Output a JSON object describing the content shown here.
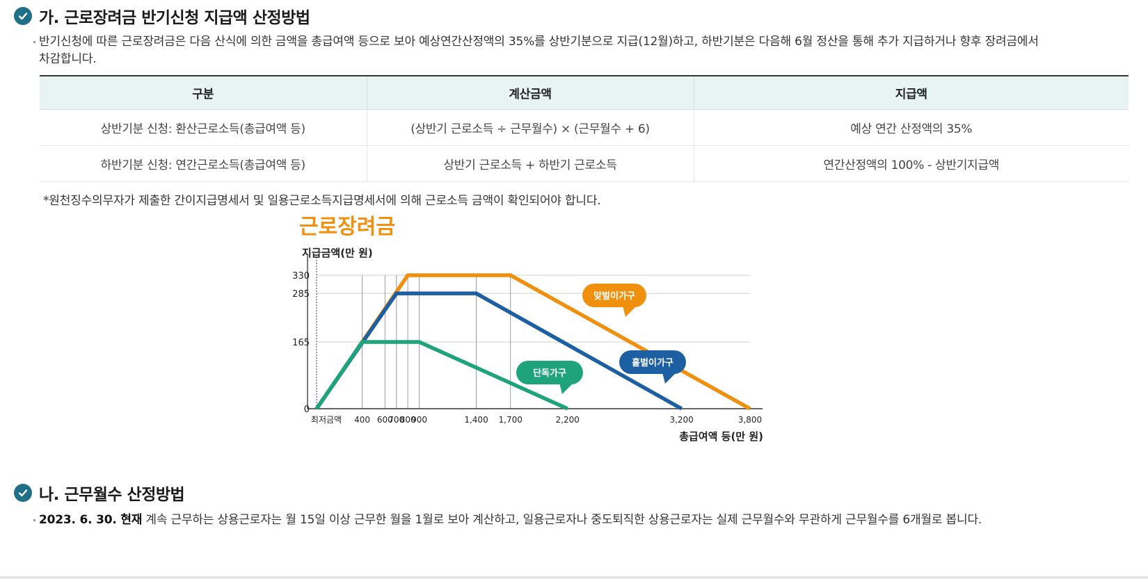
{
  "section_a": {
    "heading": "가. 근로장려금 반기신청 지급액 산정방법",
    "description": "반기신청에 따른 근로장려금은 다음 산식에 의한 금액을 총급여액 등으로 보아 예상연간산정액의 35%를 상반기분으로 지급(12월)하고, 하반기분은 다음해 6월 정산을 통해 추가 지급하거나 향후 장려금에서 차감합니다."
  },
  "table": {
    "headers": [
      "구분",
      "계산금액",
      "지급액"
    ],
    "rows": [
      [
        "상반기분 신청: 환산근로소득(총급여액 등)",
        "(상반기 근로소득 ÷ 근무월수) × (근무월수 + 6)",
        "예상 연간 산정액의 35%"
      ],
      [
        "하반기분 신청: 연간근로소득(총급여액 등)",
        "상반기 근로소득 + 하반기 근로소득",
        "연간산정액의 100% - 상반기지급액"
      ]
    ]
  },
  "footnote": "*원천징수의무자가 제출한 간이지급명세서 및 일용근로소득지급명세서에 의해 근로소득 금액이 확인되어야 합니다.",
  "chart_data": {
    "type": "line",
    "title": "근로장려금",
    "ylabel": "지급금액(만 원)",
    "xlabel": "총급여액 등(만 원)",
    "x_ticks": [
      {
        "value": 0,
        "label": "최저금액"
      },
      {
        "value": 400,
        "label": "400"
      },
      {
        "value": 600,
        "label": "600"
      },
      {
        "value": 700,
        "label": "700"
      },
      {
        "value": 800,
        "label": "800"
      },
      {
        "value": 900,
        "label": "900"
      },
      {
        "value": 1400,
        "label": "1,400"
      },
      {
        "value": 1700,
        "label": "1,700"
      },
      {
        "value": 2200,
        "label": "2,200"
      },
      {
        "value": 3200,
        "label": "3,200"
      },
      {
        "value": 3800,
        "label": "3,800"
      }
    ],
    "y_ticks": [
      0,
      165,
      285,
      330
    ],
    "xlim": [
      0,
      3800
    ],
    "ylim": [
      0,
      330
    ],
    "series": [
      {
        "name": "맞벌이가구",
        "color": "#f0900f",
        "points": [
          [
            0,
            0
          ],
          [
            800,
            330
          ],
          [
            1700,
            330
          ],
          [
            3800,
            0
          ]
        ]
      },
      {
        "name": "홑벌이가구",
        "color": "#1d5fa3",
        "points": [
          [
            0,
            0
          ],
          [
            700,
            285
          ],
          [
            1400,
            285
          ],
          [
            3200,
            0
          ]
        ]
      },
      {
        "name": "단독가구",
        "color": "#1fa37a",
        "points": [
          [
            0,
            0
          ],
          [
            400,
            165
          ],
          [
            900,
            165
          ],
          [
            2200,
            0
          ]
        ]
      }
    ]
  },
  "section_b": {
    "heading": "나. 근무월수 산정방법",
    "description_bold": "2023. 6. 30. 현재",
    "description_rest": " 계속 근무하는 상용근로자는 월 15일 이상 근무한 월을 1월로 보아 계산하고, 일용근로자나 중도퇴직한 상용근로자는 실제 근무월수와 무관하게 근무월수를 6개월로 봅니다."
  }
}
